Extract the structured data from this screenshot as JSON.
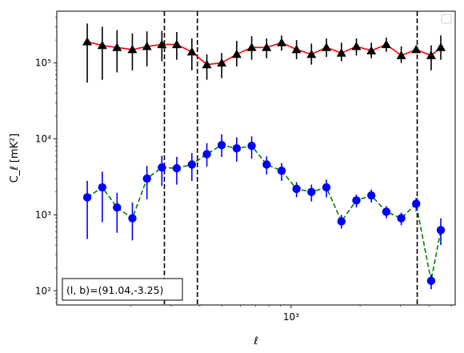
{
  "chart_data": {
    "type": "scatter",
    "xlabel": "ℓ",
    "ylabel": "C_ℓ  [mK²]",
    "xscale": "log",
    "yscale": "log",
    "xlim": [
      95,
      5200
    ],
    "ylim": [
      65,
      480000
    ],
    "x_tick_labels": [
      {
        "value": 1000,
        "label": "10³"
      }
    ],
    "y_tick_labels": [
      {
        "value": 100,
        "label": "10²"
      },
      {
        "value": 1000,
        "label": "10³"
      },
      {
        "value": 10000,
        "label": "10⁴"
      },
      {
        "value": 100000,
        "label": "10⁵"
      }
    ],
    "legend": {
      "placement": "upper right",
      "entries": []
    },
    "annotation": "(l, b)=(91.04,-3.25)",
    "vlines": [
      {
        "x": 280,
        "style": "dashed",
        "color": "#000000"
      },
      {
        "x": 390,
        "style": "dashed",
        "color": "#000000"
      },
      {
        "x": 3550,
        "style": "dashed",
        "color": "#000000"
      }
    ],
    "series": [
      {
        "line_color": "#ff0000",
        "line_style": "solid",
        "marker": "triangle",
        "marker_color": "#000000",
        "x": [
          129,
          150,
          174,
          203,
          235,
          273,
          317,
          369,
          429,
          498,
          579,
          673,
          782,
          909,
          1056,
          1227,
          1426,
          1658,
          1927,
          2239,
          2602,
          3024,
          3514,
          4084,
          4500
        ],
        "y": [
          190000,
          170000,
          160000,
          150000,
          165000,
          175000,
          175000,
          140000,
          95000,
          100000,
          130000,
          160000,
          160000,
          185000,
          150000,
          130000,
          160000,
          135000,
          165000,
          145000,
          175000,
          125000,
          150000,
          125000,
          160000
        ],
        "yerr_low": [
          55000,
          60000,
          75000,
          80000,
          90000,
          105000,
          110000,
          80000,
          60000,
          63000,
          90000,
          110000,
          115000,
          145000,
          112000,
          95000,
          120000,
          105000,
          125000,
          115000,
          140000,
          100000,
          0,
          80000,
          110000
        ],
        "yerr_high": [
          330000,
          300000,
          270000,
          245000,
          260000,
          265000,
          255000,
          210000,
          130000,
          135000,
          195000,
          225000,
          210000,
          230000,
          200000,
          180000,
          210000,
          185000,
          210000,
          185000,
          215000,
          165000,
          200000,
          170000,
          230000
        ]
      },
      {
        "line_color": "#008000",
        "line_style": "dashed",
        "marker": "circle",
        "marker_color": "#0000ff",
        "x": [
          129,
          150,
          174,
          203,
          235,
          273,
          317,
          369,
          429,
          498,
          579,
          673,
          782,
          909,
          1056,
          1227,
          1426,
          1658,
          1927,
          2239,
          2602,
          3024,
          3514,
          4084,
          4500
        ],
        "y": [
          1700,
          2300,
          1250,
          900,
          3000,
          4200,
          4100,
          4600,
          6300,
          8300,
          7500,
          8100,
          4600,
          3800,
          2200,
          2000,
          2300,
          820,
          1550,
          1800,
          1100,
          900,
          1400,
          135,
          630
        ],
        "yerr_low": [
          480,
          800,
          580,
          460,
          1600,
          2400,
          2500,
          2800,
          4300,
          5800,
          5000,
          5500,
          3400,
          2800,
          1700,
          1500,
          1700,
          660,
          1250,
          1450,
          900,
          730,
          1120,
          105,
          400
        ],
        "yerr_high": [
          2800,
          3700,
          1950,
          1450,
          4400,
          6000,
          5800,
          6500,
          8800,
          11500,
          10500,
          10800,
          5900,
          4800,
          2700,
          2500,
          2900,
          1000,
          1850,
          2150,
          1300,
          1070,
          1680,
          165,
          900
        ]
      }
    ]
  }
}
